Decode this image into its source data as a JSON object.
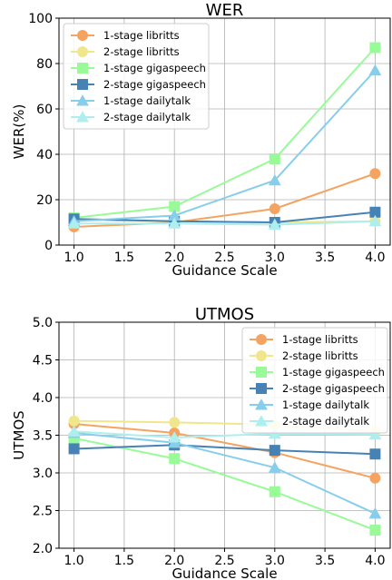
{
  "chart_data": [
    {
      "type": "line",
      "title": "WER",
      "xlabel": "Guidance Scale",
      "ylabel": "WER(%)",
      "x": [
        1.0,
        2.0,
        3.0,
        4.0
      ],
      "xticks": [
        "1.0",
        "1.5",
        "2.0",
        "2.5",
        "3.0",
        "3.5",
        "4.0"
      ],
      "yticks": [
        "0",
        "20",
        "40",
        "60",
        "80",
        "100"
      ],
      "xlim": [
        0.85,
        4.15
      ],
      "ylim": [
        0,
        100
      ],
      "grid": true,
      "legend_position": "top-left",
      "series": [
        {
          "name": "1-stage libritts",
          "color": "#f4a460",
          "marker": "circle",
          "values": [
            8,
            10,
            16,
            31.5
          ]
        },
        {
          "name": "2-stage libritts",
          "color": "#f0e68c",
          "marker": "circle",
          "values": [
            11,
            10.5,
            10,
            10.5
          ]
        },
        {
          "name": "1-stage gigaspeech",
          "color": "#98fb98",
          "marker": "square",
          "values": [
            12,
            17,
            38,
            87
          ]
        },
        {
          "name": "2-stage gigaspeech",
          "color": "#4682b4",
          "marker": "square",
          "values": [
            11.5,
            10.5,
            10,
            14.5
          ]
        },
        {
          "name": "1-stage dailytalk",
          "color": "#87ceeb",
          "marker": "triangle",
          "values": [
            10.5,
            13,
            28.5,
            77
          ]
        },
        {
          "name": "2-stage dailytalk",
          "color": "#afeeee",
          "marker": "triangle",
          "values": [
            9.5,
            9.5,
            9,
            10.5
          ]
        }
      ]
    },
    {
      "type": "line",
      "title": "UTMOS",
      "xlabel": "Guidance Scale",
      "ylabel": "UTMOS",
      "x": [
        1.0,
        2.0,
        3.0,
        4.0
      ],
      "xticks": [
        "1.0",
        "1.5",
        "2.0",
        "2.5",
        "3.0",
        "3.5",
        "4.0"
      ],
      "yticks": [
        "2.0",
        "2.5",
        "3.0",
        "3.5",
        "4.0",
        "4.5",
        "5.0"
      ],
      "xlim": [
        0.85,
        4.15
      ],
      "ylim": [
        2.0,
        5.0
      ],
      "grid": true,
      "legend_position": "top-right",
      "series": [
        {
          "name": "1-stage libritts",
          "color": "#f4a460",
          "marker": "circle",
          "values": [
            3.65,
            3.53,
            3.27,
            2.93
          ]
        },
        {
          "name": "2-stage libritts",
          "color": "#f0e68c",
          "marker": "circle",
          "values": [
            3.69,
            3.67,
            3.64,
            3.55
          ]
        },
        {
          "name": "1-stage gigaspeech",
          "color": "#98fb98",
          "marker": "square",
          "values": [
            3.46,
            3.19,
            2.75,
            2.24
          ]
        },
        {
          "name": "2-stage gigaspeech",
          "color": "#4682b4",
          "marker": "square",
          "values": [
            3.32,
            3.37,
            3.3,
            3.25
          ]
        },
        {
          "name": "1-stage dailytalk",
          "color": "#87ceeb",
          "marker": "triangle",
          "values": [
            3.53,
            3.4,
            3.07,
            2.46
          ]
        },
        {
          "name": "2-stage dailytalk",
          "color": "#afeeee",
          "marker": "triangle",
          "values": [
            3.55,
            3.47,
            3.52,
            3.51
          ]
        }
      ]
    }
  ]
}
